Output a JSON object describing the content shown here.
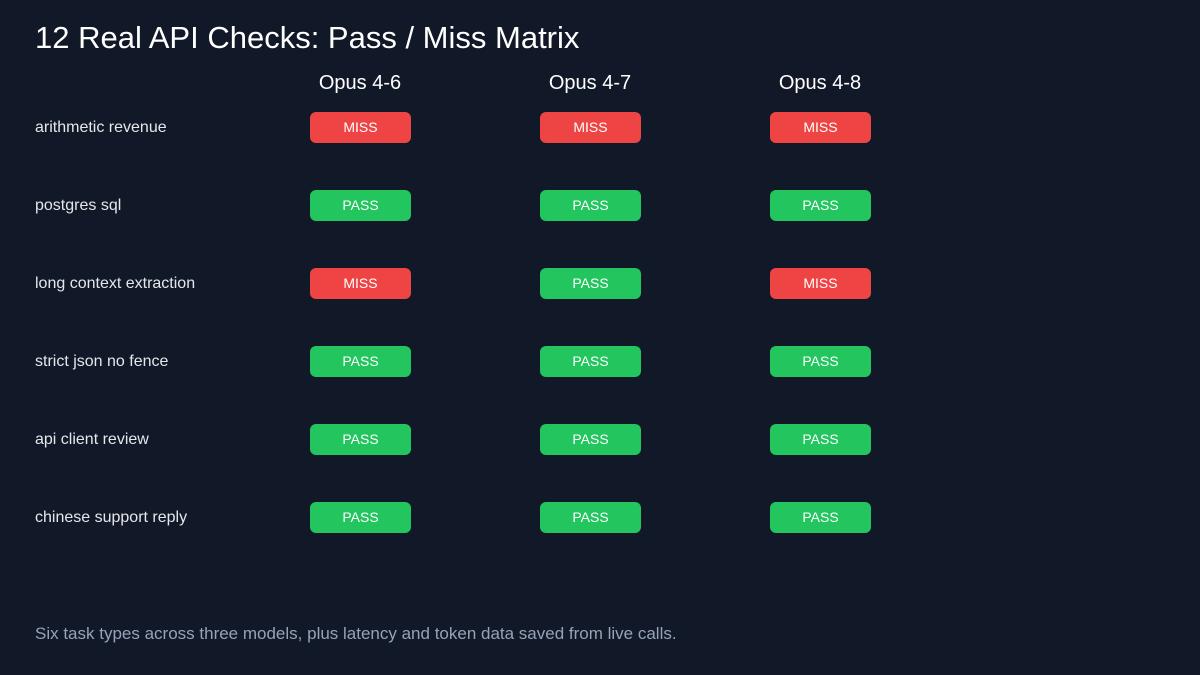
{
  "chart_data": {
    "type": "table",
    "title": "12 Real API Checks: Pass / Miss Matrix",
    "columns": [
      "Opus 4-6",
      "Opus 4-7",
      "Opus 4-8"
    ],
    "rows": [
      {
        "label": "arithmetic revenue",
        "values": [
          "MISS",
          "MISS",
          "MISS"
        ]
      },
      {
        "label": "postgres sql",
        "values": [
          "PASS",
          "PASS",
          "PASS"
        ]
      },
      {
        "label": "long context extraction",
        "values": [
          "MISS",
          "PASS",
          "MISS"
        ]
      },
      {
        "label": "strict json no fence",
        "values": [
          "PASS",
          "PASS",
          "PASS"
        ]
      },
      {
        "label": "api client review",
        "values": [
          "PASS",
          "PASS",
          "PASS"
        ]
      },
      {
        "label": "chinese support reply",
        "values": [
          "PASS",
          "PASS",
          "PASS"
        ]
      }
    ],
    "colors": {
      "PASS": "#22c55e",
      "MISS": "#ef4444"
    }
  },
  "footer": "Six task types across three models, plus latency and token data saved from live calls."
}
